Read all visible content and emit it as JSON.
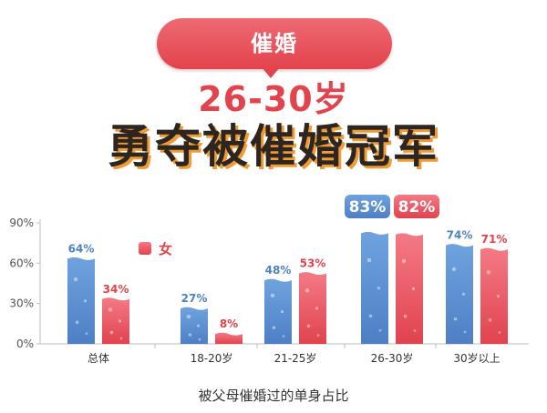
{
  "banner": {
    "label": "催婚"
  },
  "headline": {
    "sub": "26-30岁",
    "main": "勇夺被催婚冠军"
  },
  "colors": {
    "male_top": "#6fa3de",
    "male_bottom": "#4e7fc6",
    "male_label": "#4f82c3",
    "female_top": "#f47a86",
    "female_bottom": "#e0434e",
    "female_label": "#e2434c",
    "accent": "#e2434c",
    "headline_shadow": "#f09b34"
  },
  "chart_data": {
    "type": "bar",
    "categories": [
      "总体",
      "18-20岁",
      "21-25岁",
      "26-30岁",
      "30岁以上"
    ],
    "series": [
      {
        "values": [
          64,
          27,
          48,
          83,
          74
        ]
      },
      {
        "values": [
          34,
          8,
          53,
          82,
          71
        ]
      }
    ],
    "data_labels": [
      [
        "64%",
        "27%",
        "48%",
        "83%",
        "74%"
      ],
      [
        "34%",
        "8%",
        "53%",
        "82%",
        "71%"
      ]
    ],
    "highlight_category": "26-30岁",
    "legend_partial": "女",
    "xlabel": "被父母催婚过的单身占比",
    "ylabel": "",
    "ylim": [
      0,
      90
    ],
    "yticks": [
      0,
      30,
      60,
      90
    ],
    "ytick_labels": [
      "0%",
      "30%",
      "60%",
      "90%"
    ],
    "grid": false
  }
}
